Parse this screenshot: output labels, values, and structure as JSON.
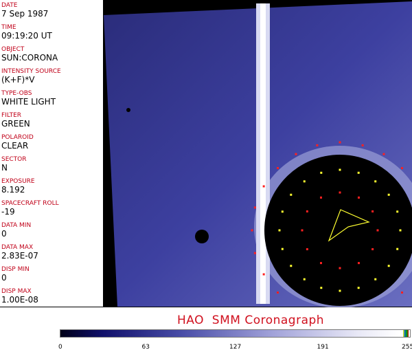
{
  "fields": [
    {
      "label": "DATE",
      "value": "7 Sep 1987"
    },
    {
      "label": "TIME",
      "value": "09:19:20 UT"
    },
    {
      "label": "OBJECT",
      "value": "SUN:CORONA"
    },
    {
      "label": "INTENSITY SOURCE",
      "value": "(K+F)*V"
    },
    {
      "label": "TYPE-OBS",
      "value": "WHITE LIGHT"
    },
    {
      "label": "FILTER",
      "value": "GREEN"
    },
    {
      "label": "POLAROID",
      "value": "CLEAR"
    },
    {
      "label": "SECTOR",
      "value": "N"
    },
    {
      "label": "EXPOSURE",
      "value": "8.192"
    },
    {
      "label": "SPACECRAFT ROLL",
      "value": "-19"
    },
    {
      "label": "DATA MIN",
      "value": "0"
    },
    {
      "label": "DATA MAX",
      "value": "2.83E-07"
    },
    {
      "label": "DISP MIN",
      "value": "0"
    },
    {
      "label": "DISP MAX",
      "value": "1.00E-08"
    }
  ],
  "title": "HAO  SMM Coronagraph",
  "colorbar": {
    "ticks": [
      "0",
      "63",
      "127",
      "191",
      "255"
    ],
    "colors": {
      "label": "#c00018",
      "title": "#d0101e",
      "marker_red": "#ff2020",
      "marker_yellow": "#ffff30"
    }
  }
}
